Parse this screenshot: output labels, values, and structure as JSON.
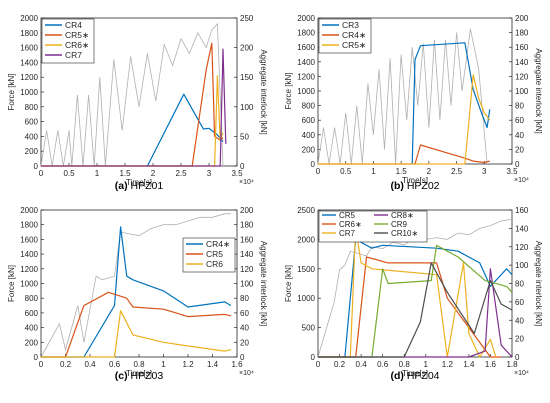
{
  "figure": {
    "panels": [
      "(a) HPZ01",
      "(b) HPZ02",
      "(c) HPZ03",
      "(d) HPZ04"
    ]
  },
  "chart_data": [
    {
      "panel_id": "a",
      "panel_label_prefix": "(a)",
      "panel_label_name": "HPZ01",
      "type": "line",
      "xlabel": "Time[s]",
      "x_multiplier": "×10⁴",
      "ylabel_left": "Force [kN]",
      "ylabel_right": "Aggregate interlock  [kN]",
      "xlim": [
        0,
        3.5
      ],
      "ylim_left": [
        0,
        2000
      ],
      "ylim_right": [
        0,
        250
      ],
      "x_ticks": [
        "0",
        "0.5",
        "1",
        "1.5",
        "2",
        "2.5",
        "3",
        "3.5"
      ],
      "x_tick_values": [
        0,
        0.5,
        1,
        1.5,
        2,
        2.5,
        3,
        3.5
      ],
      "y_ticks_left": [
        "0",
        "200",
        "400",
        "600",
        "800",
        "1000",
        "1200",
        "1400",
        "1600",
        "1800",
        "2000"
      ],
      "y_tick_values_left": [
        0,
        200,
        400,
        600,
        800,
        1000,
        1200,
        1400,
        1600,
        1800,
        2000
      ],
      "y_ticks_right": [
        "0",
        "50",
        "100",
        "150",
        "200",
        "250"
      ],
      "y_tick_values_right": [
        0,
        50,
        100,
        150,
        200,
        250
      ],
      "legend_position": "top-left",
      "series": [
        {
          "name": "CR4",
          "color": "#0072BD",
          "x": [
            1.9,
            2.55,
            2.9,
            3.0,
            3.15,
            3.25
          ],
          "y": [
            0,
            970,
            500,
            510,
            420,
            330
          ]
        },
        {
          "name": "CR5∗",
          "color": "#D95319",
          "x": [
            0,
            2.7,
            2.95,
            3.05,
            3.1,
            3.2,
            3.25
          ],
          "y": [
            0,
            0,
            1300,
            1660,
            400,
            350,
            380
          ]
        },
        {
          "name": "CR6∗",
          "color": "#EDB120",
          "x": [
            0,
            3.1,
            3.15,
            3.2,
            3.25
          ],
          "y": [
            0,
            0,
            1220,
            350,
            450
          ]
        },
        {
          "name": "CR7",
          "color": "#7E2F8E",
          "x": [
            0,
            3.2,
            3.25,
            3.3
          ],
          "y": [
            0,
            0,
            1580,
            300
          ]
        }
      ],
      "gray_series": {
        "color": "#B0B0B0",
        "x": [
          0,
          0.1,
          0.2,
          0.3,
          0.4,
          0.5,
          0.55,
          0.65,
          0.75,
          0.85,
          0.95,
          1.05,
          1.15,
          1.3,
          1.45,
          1.6,
          1.75,
          1.9,
          2.05,
          2.2,
          2.35,
          2.5,
          2.65,
          2.8,
          2.95,
          3.05,
          3.15,
          3.25
        ],
        "y": [
          0,
          60,
          0,
          60,
          0,
          60,
          0,
          120,
          0,
          120,
          0,
          150,
          0,
          180,
          60,
          185,
          100,
          190,
          110,
          205,
          170,
          215,
          190,
          225,
          200,
          230,
          240,
          0
        ]
      }
    },
    {
      "panel_id": "b",
      "panel_label_prefix": "(b)",
      "panel_label_name": "HPZ02",
      "type": "line",
      "xlabel": "Time[s]",
      "x_multiplier": "×10⁴",
      "ylabel_left": "Force [kN]",
      "ylabel_right": "Aggregate interlock  [kN]",
      "xlim": [
        0,
        3.5
      ],
      "ylim_left": [
        0,
        2000
      ],
      "ylim_right": [
        0,
        200
      ],
      "x_ticks": [
        "0",
        "0.5",
        "1",
        "1.5",
        "2",
        "2.5",
        "3",
        "3.5"
      ],
      "x_tick_values": [
        0,
        0.5,
        1,
        1.5,
        2,
        2.5,
        3,
        3.5
      ],
      "y_ticks_left": [
        "0",
        "200",
        "400",
        "600",
        "800",
        "1000",
        "1200",
        "1400",
        "1600",
        "1800",
        "2000"
      ],
      "y_tick_values_left": [
        0,
        200,
        400,
        600,
        800,
        1000,
        1200,
        1400,
        1600,
        1800,
        2000
      ],
      "y_ticks_right": [
        "0",
        "20",
        "40",
        "60",
        "80",
        "100",
        "120",
        "140",
        "160",
        "180",
        "200"
      ],
      "y_tick_values_right": [
        0,
        20,
        40,
        60,
        80,
        100,
        120,
        140,
        160,
        180,
        200
      ],
      "legend_position": "top-left",
      "series": [
        {
          "name": "CR3",
          "color": "#0072BD",
          "x": [
            1.7,
            1.75,
            1.85,
            2.65,
            2.8,
            2.95,
            3.05,
            3.1
          ],
          "y": [
            0,
            1430,
            1620,
            1660,
            1020,
            700,
            500,
            750
          ]
        },
        {
          "name": "CR4∗",
          "color": "#D95319",
          "x": [
            0,
            1.75,
            1.85,
            2.65,
            2.8,
            3.0,
            3.1
          ],
          "y": [
            0,
            0,
            260,
            80,
            40,
            20,
            40
          ]
        },
        {
          "name": "CR5∗",
          "color": "#EDB120",
          "x": [
            0,
            2.65,
            2.8,
            2.9,
            3.0,
            3.1
          ],
          "y": [
            0,
            0,
            1220,
            900,
            700,
            600
          ]
        }
      ],
      "gray_series": {
        "color": "#B0B0B0",
        "x": [
          0,
          0.1,
          0.2,
          0.3,
          0.4,
          0.5,
          0.6,
          0.7,
          0.8,
          0.9,
          1.0,
          1.1,
          1.2,
          1.3,
          1.4,
          1.5,
          1.6,
          1.7,
          1.8,
          1.9,
          2.0,
          2.1,
          2.2,
          2.3,
          2.4,
          2.5,
          2.6,
          2.75,
          2.9,
          3.05
        ],
        "y": [
          0,
          50,
          0,
          50,
          0,
          70,
          0,
          80,
          0,
          110,
          40,
          130,
          20,
          145,
          0,
          150,
          60,
          160,
          80,
          165,
          50,
          170,
          60,
          170,
          80,
          180,
          100,
          185,
          130,
          0
        ]
      }
    },
    {
      "panel_id": "c",
      "panel_label_prefix": "(c)",
      "panel_label_name": "HPZ03",
      "type": "line",
      "xlabel": "Time[s]",
      "x_multiplier": "×10⁴",
      "ylabel_left": "Force [kN]",
      "ylabel_right": "Aggregate interlock  [kN]",
      "xlim": [
        0,
        1.6
      ],
      "ylim_left": [
        0,
        2000
      ],
      "ylim_right": [
        0,
        200
      ],
      "x_ticks": [
        "0",
        "0.2",
        "0.4",
        "0.6",
        "0.8",
        "1",
        "1.2",
        "1.4",
        "1.6"
      ],
      "x_tick_values": [
        0,
        0.2,
        0.4,
        0.6,
        0.8,
        1.0,
        1.2,
        1.4,
        1.6
      ],
      "y_ticks_left": [
        "0",
        "200",
        "400",
        "600",
        "800",
        "1000",
        "1200",
        "1400",
        "1600",
        "1800",
        "2000"
      ],
      "y_tick_values_left": [
        0,
        200,
        400,
        600,
        800,
        1000,
        1200,
        1400,
        1600,
        1800,
        2000
      ],
      "y_ticks_right": [
        "0",
        "20",
        "40",
        "60",
        "80",
        "100",
        "120",
        "140",
        "160",
        "180",
        "200"
      ],
      "y_tick_values_right": [
        0,
        20,
        40,
        60,
        80,
        100,
        120,
        140,
        160,
        180,
        200
      ],
      "legend_position": "right",
      "series": [
        {
          "name": "CR4∗",
          "color": "#0072BD",
          "x": [
            0,
            0.35,
            0.6,
            0.65,
            0.7,
            0.75,
            1.0,
            1.2,
            1.5,
            1.55
          ],
          "y": [
            0,
            0,
            700,
            1770,
            1100,
            1050,
            900,
            680,
            750,
            700
          ]
        },
        {
          "name": "CR5",
          "color": "#D95319",
          "x": [
            0,
            0.2,
            0.35,
            0.55,
            0.7,
            0.75,
            1.0,
            1.2,
            1.5,
            1.55
          ],
          "y": [
            0,
            0,
            700,
            880,
            800,
            680,
            650,
            550,
            580,
            560
          ]
        },
        {
          "name": "CR6",
          "color": "#EDB120",
          "x": [
            0,
            0.6,
            0.65,
            0.75,
            1.0,
            1.2,
            1.5,
            1.55
          ],
          "y": [
            0,
            0,
            630,
            300,
            200,
            150,
            80,
            100
          ]
        }
      ],
      "gray_series": {
        "color": "#B0B0B0",
        "x": [
          0,
          0.15,
          0.2,
          0.3,
          0.35,
          0.45,
          0.5,
          0.6,
          0.65,
          0.8,
          0.9,
          1.0,
          1.1,
          1.2,
          1.3,
          1.4,
          1.5,
          1.55
        ],
        "y": [
          0,
          45,
          10,
          70,
          20,
          110,
          105,
          110,
          170,
          165,
          175,
          180,
          180,
          185,
          190,
          190,
          195,
          195
        ]
      }
    },
    {
      "panel_id": "d",
      "panel_label_prefix": "(d)",
      "panel_label_name": "HPZ04",
      "type": "line",
      "xlabel": "Time[s]",
      "x_multiplier": "×10⁴",
      "ylabel_left": "Force [kN]",
      "ylabel_right": "Aggregate interlock  [kN]",
      "xlim": [
        0,
        1.8
      ],
      "ylim_left": [
        0,
        2500
      ],
      "ylim_right": [
        0,
        160
      ],
      "x_ticks": [
        "0",
        "0.2",
        "0.4",
        "0.6",
        "0.8",
        "1",
        "1.2",
        "1.4",
        "1.6",
        "1.8"
      ],
      "x_tick_values": [
        0,
        0.2,
        0.4,
        0.6,
        0.8,
        1.0,
        1.2,
        1.4,
        1.6,
        1.8
      ],
      "y_ticks_left": [
        "0",
        "500",
        "1000",
        "1500",
        "2000",
        "2500"
      ],
      "y_tick_values_left": [
        0,
        500,
        1000,
        1500,
        2000,
        2500
      ],
      "y_ticks_right": [
        "0",
        "20",
        "40",
        "60",
        "80",
        "100",
        "120",
        "140",
        "160"
      ],
      "y_tick_values_right": [
        0,
        20,
        40,
        60,
        80,
        100,
        120,
        140,
        160
      ],
      "legend_position": "top",
      "series": [
        {
          "name": "CR5",
          "color": "#0072BD",
          "x": [
            0,
            0.25,
            0.35,
            0.5,
            0.6,
            1.1,
            1.3,
            1.5,
            1.6,
            1.75,
            1.8
          ],
          "y": [
            0,
            0,
            2000,
            1850,
            1900,
            1850,
            1800,
            1600,
            1200,
            1500,
            1400
          ]
        },
        {
          "name": "CR6∗",
          "color": "#D95319",
          "x": [
            0,
            0.35,
            0.45,
            0.65,
            1.1,
            1.2,
            1.4,
            1.6,
            1.7
          ],
          "y": [
            0,
            0,
            1700,
            1600,
            1600,
            1000,
            500,
            0,
            0
          ]
        },
        {
          "name": "CR7",
          "color": "#EDB120",
          "x": [
            0,
            0.3,
            0.35,
            0.4,
            0.5,
            1.1,
            1.2,
            1.35,
            1.4,
            1.5,
            1.6,
            1.65
          ],
          "y": [
            0,
            0,
            2200,
            1600,
            1500,
            1400,
            0,
            1600,
            400,
            0,
            300,
            0
          ]
        },
        {
          "name": "CR8∗",
          "color": "#7E2F8E",
          "x": [
            0,
            1.4,
            1.55,
            1.6,
            1.7,
            1.8
          ],
          "y": [
            0,
            0,
            100,
            1500,
            200,
            0
          ]
        },
        {
          "name": "CR9",
          "color": "#77AC30",
          "x": [
            0,
            0.5,
            0.6,
            0.65,
            1.05,
            1.1,
            1.3,
            1.55,
            1.75,
            1.8
          ],
          "y": [
            0,
            0,
            1500,
            1250,
            1300,
            1900,
            1700,
            1300,
            1200,
            1100
          ]
        },
        {
          "name": "CR10∗",
          "color": "#4D4D4D",
          "x": [
            0,
            0.6,
            0.8,
            0.95,
            1.05,
            1.2,
            1.45,
            1.6,
            1.7,
            1.8
          ],
          "y": [
            0,
            0,
            0,
            600,
            1600,
            1100,
            400,
            1300,
            900,
            800
          ]
        }
      ],
      "gray_series": {
        "color": "#B0B0B0",
        "x": [
          0,
          0.15,
          0.2,
          0.25,
          0.3,
          0.45,
          0.5,
          0.6,
          0.7,
          0.8,
          0.9,
          1.0,
          1.1,
          1.2,
          1.3,
          1.4,
          1.5,
          1.6,
          1.7,
          1.8
        ],
        "y": [
          0,
          60,
          95,
          100,
          115,
          110,
          120,
          118,
          125,
          122,
          130,
          128,
          130,
          128,
          135,
          133,
          140,
          143,
          148,
          150
        ]
      }
    }
  ]
}
